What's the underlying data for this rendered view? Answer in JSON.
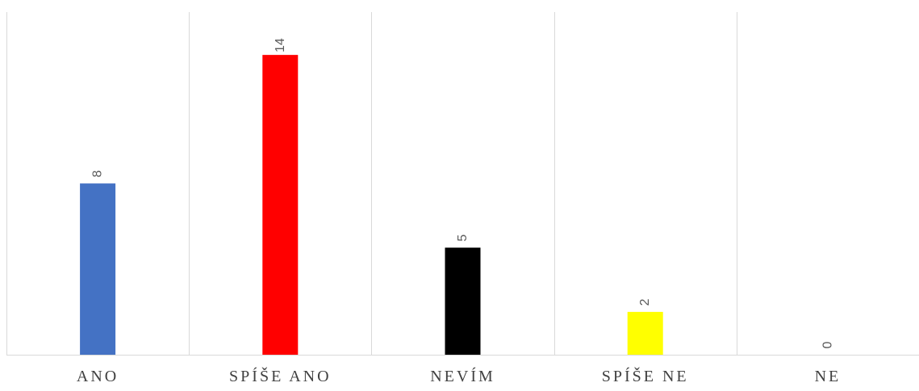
{
  "chart_data": {
    "type": "bar",
    "categories": [
      "ANO",
      "SPÍŠE ANO",
      "NEVÍM",
      "SPÍŠE NE",
      "NE"
    ],
    "values": [
      8,
      14,
      5,
      2,
      0
    ],
    "colors": [
      "#4472C4",
      "#FF0000",
      "#000000",
      "#FFFF00",
      "#A5A5A5"
    ],
    "data_labels": [
      "8",
      "14",
      "5",
      "2",
      "0"
    ],
    "ylim": [
      0,
      16
    ],
    "grid": "vertical-separators",
    "legend": "none"
  }
}
